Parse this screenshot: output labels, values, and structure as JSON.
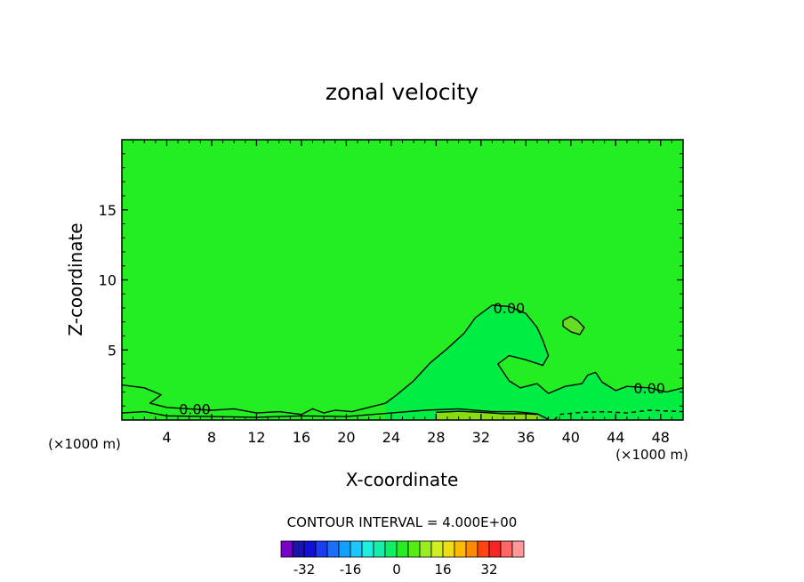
{
  "chart_data": {
    "type": "contour",
    "title": "zonal velocity",
    "xlabel": "X-coordinate",
    "ylabel": "Z-coordinate",
    "x_unit": "(×1000 m)",
    "x_unit_right": "(×1000 m)",
    "xlim": [
      0,
      50
    ],
    "ylim": [
      0,
      20
    ],
    "x_ticks": [
      4,
      8,
      12,
      16,
      20,
      24,
      28,
      32,
      36,
      40,
      44,
      48
    ],
    "y_ticks": [
      5,
      10,
      15
    ],
    "background_fill": "#22ee22",
    "contour_labels": [
      {
        "text": "0.00",
        "x": 34.5,
        "z": 8.0
      },
      {
        "text": "0.00",
        "x": 47.0,
        "z": 2.3
      },
      {
        "text": "0.00",
        "x": 6.5,
        "z": 0.8
      }
    ],
    "regions": [
      {
        "name": "inner-zero-region",
        "color": "#00ee44",
        "points": [
          [
            23.5,
            1.2
          ],
          [
            24.5,
            1.8
          ],
          [
            26,
            2.8
          ],
          [
            27.5,
            4.1
          ],
          [
            29,
            5.1
          ],
          [
            30.5,
            6.2
          ],
          [
            31.5,
            7.3
          ],
          [
            33,
            8.2
          ],
          [
            34.5,
            8.1
          ],
          [
            36,
            7.6
          ],
          [
            37,
            6.6
          ],
          [
            37.5,
            5.7
          ],
          [
            38,
            4.6
          ],
          [
            37.5,
            3.9
          ],
          [
            36,
            4.3
          ],
          [
            34.5,
            4.6
          ],
          [
            33.5,
            4.0
          ],
          [
            34.5,
            2.8
          ],
          [
            35.5,
            2.3
          ],
          [
            37,
            2.6
          ],
          [
            38,
            1.9
          ],
          [
            39.5,
            2.4
          ],
          [
            41,
            2.6
          ],
          [
            41.5,
            3.2
          ],
          [
            42.2,
            3.4
          ],
          [
            42.8,
            2.7
          ],
          [
            44,
            2.1
          ],
          [
            45,
            2.4
          ],
          [
            47,
            2.3
          ],
          [
            48.5,
            2.0
          ],
          [
            50,
            2.3
          ],
          [
            50,
            0
          ],
          [
            23.5,
            0
          ]
        ]
      },
      {
        "name": "positive-band-region",
        "color": "#88dd11",
        "points": [
          [
            28,
            0.55
          ],
          [
            30,
            0.62
          ],
          [
            32,
            0.55
          ],
          [
            34,
            0.45
          ],
          [
            36,
            0.45
          ],
          [
            37,
            0.4
          ],
          [
            37.5,
            0
          ],
          [
            28,
            0
          ]
        ]
      },
      {
        "name": "upper-positive-blob",
        "color": "#66dd22",
        "points": [
          [
            39.3,
            7.1
          ],
          [
            40,
            7.4
          ],
          [
            40.6,
            7.1
          ],
          [
            41.2,
            6.6
          ],
          [
            40.8,
            6.1
          ],
          [
            40,
            6.3
          ],
          [
            39.3,
            6.7
          ]
        ]
      }
    ],
    "contours": [
      {
        "name": "zero-contour-main",
        "dashed": false,
        "points": [
          [
            23.5,
            1.2
          ],
          [
            24.5,
            1.8
          ],
          [
            26,
            2.8
          ],
          [
            27.5,
            4.1
          ],
          [
            29,
            5.1
          ],
          [
            30.5,
            6.2
          ],
          [
            31.5,
            7.3
          ],
          [
            33,
            8.2
          ],
          [
            34.5,
            8.1
          ],
          [
            36,
            7.6
          ],
          [
            37,
            6.6
          ],
          [
            37.5,
            5.7
          ],
          [
            38,
            4.6
          ],
          [
            37.5,
            3.9
          ],
          [
            36,
            4.3
          ],
          [
            34.5,
            4.6
          ],
          [
            33.5,
            4.0
          ],
          [
            34.5,
            2.8
          ],
          [
            35.5,
            2.3
          ],
          [
            37,
            2.6
          ],
          [
            38,
            1.9
          ],
          [
            39.5,
            2.4
          ],
          [
            41,
            2.6
          ],
          [
            41.5,
            3.2
          ],
          [
            42.2,
            3.4
          ],
          [
            42.8,
            2.7
          ],
          [
            44,
            2.1
          ],
          [
            45,
            2.4
          ],
          [
            47,
            2.3
          ],
          [
            48.5,
            2.0
          ],
          [
            50,
            2.3
          ]
        ]
      },
      {
        "name": "zero-contour-lower-left",
        "dashed": false,
        "points": [
          [
            0,
            2.5
          ],
          [
            2,
            2.3
          ],
          [
            3.5,
            1.8
          ],
          [
            2.5,
            1.2
          ],
          [
            4,
            0.9
          ],
          [
            6,
            0.8
          ],
          [
            8,
            0.7
          ],
          [
            10,
            0.8
          ],
          [
            12,
            0.5
          ],
          [
            14,
            0.6
          ],
          [
            16,
            0.4
          ],
          [
            17,
            0.8
          ],
          [
            18,
            0.5
          ],
          [
            19,
            0.7
          ],
          [
            20.5,
            0.6
          ],
          [
            22,
            0.9
          ],
          [
            23.5,
            1.2
          ]
        ]
      },
      {
        "name": "zero-contour-near-ground",
        "dashed": false,
        "points": [
          [
            0,
            0.5
          ],
          [
            2,
            0.6
          ],
          [
            4,
            0.3
          ],
          [
            8,
            0.25
          ],
          [
            12,
            0.2
          ],
          [
            16,
            0.3
          ],
          [
            20,
            0.25
          ],
          [
            24,
            0.5
          ],
          [
            27,
            0.7
          ],
          [
            30,
            0.8
          ],
          [
            33,
            0.6
          ],
          [
            35,
            0.6
          ],
          [
            37,
            0.45
          ],
          [
            38,
            0.05
          ]
        ]
      },
      {
        "name": "positive-band-contour",
        "dashed": false,
        "points": [
          [
            28,
            0.55
          ],
          [
            30,
            0.62
          ],
          [
            32,
            0.55
          ],
          [
            34,
            0.45
          ],
          [
            36,
            0.45
          ],
          [
            37,
            0.4
          ]
        ]
      },
      {
        "name": "upper-positive-blob-contour",
        "dashed": false,
        "points": [
          [
            39.3,
            7.1
          ],
          [
            40,
            7.4
          ],
          [
            40.6,
            7.1
          ],
          [
            41.2,
            6.6
          ],
          [
            40.8,
            6.1
          ],
          [
            40,
            6.3
          ],
          [
            39.3,
            6.7
          ],
          [
            39.3,
            7.1
          ]
        ]
      },
      {
        "name": "negative-dashed-contour",
        "dashed": true,
        "points": [
          [
            38.5,
            0
          ],
          [
            39,
            0.4
          ],
          [
            41,
            0.55
          ],
          [
            43,
            0.6
          ],
          [
            45,
            0.5
          ],
          [
            47,
            0.7
          ],
          [
            50,
            0.6
          ]
        ]
      }
    ],
    "colorbar": {
      "label": "CONTOUR INTERVAL = 4.000E+00",
      "colors": [
        "#7a00cc",
        "#1a14a8",
        "#1010d8",
        "#1c3cf0",
        "#1870ff",
        "#12a0ff",
        "#18c8ff",
        "#22eedd",
        "#14eeaa",
        "#10ee66",
        "#22ee22",
        "#55ee11",
        "#99ee22",
        "#ccee22",
        "#eedd11",
        "#ffbb00",
        "#ff8a00",
        "#ff4411",
        "#ff2222",
        "#ff6666",
        "#ff9999"
      ],
      "tick_labels": [
        "-32",
        "-16",
        "0",
        "16",
        "32"
      ],
      "tick_values": [
        -32,
        -16,
        0,
        16,
        32
      ],
      "min": -40,
      "interval": 4
    }
  }
}
